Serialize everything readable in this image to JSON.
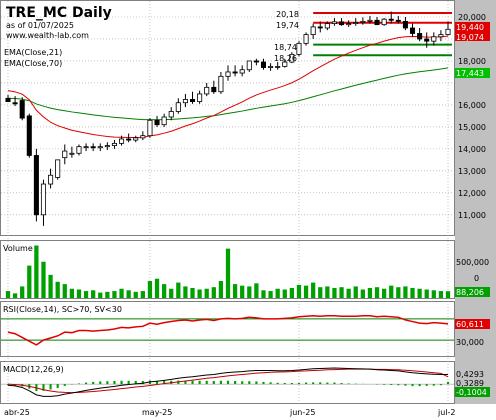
{
  "header": {
    "symbol_title": "TRE_MC Daily",
    "asof": "as of 01/07/2025",
    "site": "www.wealth-lab.com",
    "ema_labels": [
      "EMA(Close,21)",
      "EMA(Close,70)"
    ]
  },
  "colors": {
    "up_candle": "#ffffff",
    "down_candle": "#000000",
    "ema21": "#e00000",
    "ema70": "#008000",
    "volume": "#00a000",
    "rsi": "#e00000",
    "macd": "#000000",
    "macd_signal": "#c00000",
    "support_lines": "#008000",
    "resistance_lines": "#e00000",
    "axis_bg": "#c0c0c0",
    "last_price_tag": "#e00000",
    "ema70_tag": "#00c000"
  },
  "price_panel": {
    "y_ticks": [
      "20,000",
      "19,000",
      "18,000",
      "17,000",
      "16,000",
      "15,000",
      "14,000",
      "13,000",
      "12,000",
      "11,000"
    ],
    "tags": {
      "last": "19,440",
      "ema21": "19,074",
      "ema70": "17,443"
    },
    "level_labels": [
      "20,18",
      "19,74",
      "18,74",
      "18,26"
    ]
  },
  "volume_panel": {
    "label": "Volume",
    "y_ticks": [
      "500,000",
      "0"
    ],
    "tag": "88,206"
  },
  "rsi_panel": {
    "label": "RSI(Close,14), SC>70, SV<30",
    "y_ticks": [
      "30,000"
    ],
    "tag": "60,611"
  },
  "macd_panel": {
    "label": "MACD(12,26,9)",
    "tags": [
      "0,4293",
      "0,3289",
      "-0,1004"
    ]
  },
  "x_axis": {
    "labels": [
      "abr-25",
      "may-25",
      "jun-25",
      "jul-2"
    ]
  },
  "chart_data": {
    "type": "candlestick",
    "ylim": [
      10400,
      20500
    ],
    "dates": [
      "2025-04-01",
      "2025-04-02",
      "2025-04-03",
      "2025-04-04",
      "2025-04-07",
      "2025-04-08",
      "2025-04-09",
      "2025-04-10",
      "2025-04-11",
      "2025-04-14",
      "2025-04-15",
      "2025-04-16",
      "2025-04-17",
      "2025-04-22",
      "2025-04-23",
      "2025-04-24",
      "2025-04-25",
      "2025-04-28",
      "2025-04-29",
      "2025-04-30",
      "2025-05-02",
      "2025-05-05",
      "2025-05-06",
      "2025-05-07",
      "2025-05-08",
      "2025-05-09",
      "2025-05-12",
      "2025-05-13",
      "2025-05-14",
      "2025-05-15",
      "2025-05-16",
      "2025-05-19",
      "2025-05-20",
      "2025-05-21",
      "2025-05-22",
      "2025-05-23",
      "2025-05-26",
      "2025-05-27",
      "2025-05-28",
      "2025-05-29",
      "2025-05-30",
      "2025-06-02",
      "2025-06-03",
      "2025-06-04",
      "2025-06-05",
      "2025-06-06",
      "2025-06-09",
      "2025-06-10",
      "2025-06-11",
      "2025-06-12",
      "2025-06-13",
      "2025-06-16",
      "2025-06-17",
      "2025-06-18",
      "2025-06-19",
      "2025-06-20",
      "2025-06-23",
      "2025-06-24",
      "2025-06-25",
      "2025-06-26",
      "2025-06-27",
      "2025-06-30",
      "2025-07-01"
    ],
    "open": [
      16300,
      16100,
      16200,
      15500,
      13700,
      11000,
      12400,
      12700,
      13600,
      13800,
      13800,
      14100,
      14100,
      14050,
      14100,
      14150,
      14250,
      14450,
      14400,
      14500,
      14600,
      15300,
      15100,
      15450,
      15700,
      16100,
      16250,
      16150,
      16500,
      16800,
      16600,
      17300,
      17500,
      17450,
      17600,
      18000,
      17950,
      17700,
      17750,
      17750,
      17950,
      18300,
      18800,
      19200,
      19550,
      19500,
      19700,
      19780,
      19650,
      19700,
      19750,
      19800,
      19850,
      19650,
      19900,
      19850,
      19800,
      19500,
      19250,
      19000,
      18900,
      19100,
      19200
    ],
    "high": [
      16450,
      16400,
      16350,
      15600,
      14000,
      12600,
      13100,
      13500,
      14200,
      14100,
      14200,
      14250,
      14250,
      14250,
      14300,
      14400,
      14600,
      14700,
      14600,
      14800,
      15400,
      15500,
      15600,
      15900,
      16300,
      16500,
      16600,
      16650,
      17000,
      17100,
      17500,
      17800,
      17800,
      17800,
      18000,
      18100,
      18100,
      17900,
      17950,
      18100,
      18400,
      18900,
      19300,
      19700,
      19800,
      19800,
      19950,
      19950,
      19850,
      19950,
      19980,
      20050,
      20000,
      19950,
      20250,
      20050,
      20000,
      19700,
      19500,
      19300,
      19300,
      19400,
      19800
    ],
    "low": [
      16150,
      15950,
      15300,
      13600,
      10700,
      10500,
      12200,
      12600,
      13300,
      13600,
      13700,
      13900,
      13900,
      13900,
      13950,
      14000,
      14150,
      14300,
      14300,
      14400,
      14500,
      15000,
      15000,
      15300,
      15600,
      15900,
      16050,
      16050,
      16400,
      16500,
      16500,
      17100,
      17300,
      17300,
      17500,
      17800,
      17600,
      17550,
      17600,
      17700,
      17900,
      18200,
      18700,
      19000,
      19300,
      19400,
      19600,
      19600,
      19550,
      19600,
      19650,
      19700,
      19650,
      19600,
      19700,
      19700,
      19400,
      19100,
      18900,
      18600,
      18700,
      18900,
      19150
    ],
    "close": [
      16150,
      16050,
      15400,
      13700,
      11000,
      12400,
      12800,
      13500,
      13900,
      13800,
      14100,
      14100,
      14050,
      14100,
      14150,
      14250,
      14450,
      14400,
      14500,
      14600,
      15300,
      15100,
      15450,
      15700,
      16100,
      16250,
      16150,
      16500,
      16800,
      16600,
      17300,
      17500,
      17450,
      17600,
      18000,
      17950,
      17700,
      17750,
      17750,
      17950,
      18300,
      18800,
      19200,
      19550,
      19500,
      19700,
      19780,
      19650,
      19700,
      19750,
      19800,
      19850,
      19650,
      19900,
      19850,
      19800,
      19500,
      19250,
      19000,
      18900,
      19100,
      19200,
      19440
    ],
    "ema21_last": 19074,
    "ema70_last": 17443,
    "levels": {
      "resistance": [
        20180,
        19740
      ],
      "support": [
        18740,
        18260
      ]
    },
    "volume": [
      90000,
      60000,
      150000,
      420000,
      680000,
      470000,
      300000,
      210000,
      180000,
      120000,
      110000,
      90000,
      100000,
      70000,
      80000,
      90000,
      120000,
      100000,
      80000,
      90000,
      220000,
      250000,
      180000,
      120000,
      200000,
      150000,
      130000,
      110000,
      120000,
      140000,
      220000,
      640000,
      180000,
      160000,
      150000,
      190000,
      100000,
      90000,
      120000,
      110000,
      130000,
      170000,
      160000,
      200000,
      140000,
      150000,
      130000,
      140000,
      120000,
      150000,
      110000,
      130000,
      140000,
      120000,
      160000,
      140000,
      150000,
      130000,
      120000,
      110000,
      100000,
      90000,
      88206
    ],
    "volume_ylim": [
      0,
      700000
    ],
    "rsi": [
      45,
      42,
      35,
      28,
      21,
      30,
      34,
      38,
      45,
      44,
      48,
      48,
      47,
      48,
      49,
      51,
      54,
      53,
      55,
      56,
      62,
      60,
      63,
      65,
      67,
      68,
      66,
      68,
      69,
      67,
      70,
      71,
      70,
      71,
      73,
      72,
      70,
      70,
      70,
      71,
      72,
      74,
      75,
      76,
      75,
      76,
      76,
      75,
      75,
      75,
      76,
      76,
      74,
      75,
      74,
      73,
      68,
      65,
      62,
      61,
      63,
      62,
      60.611
    ],
    "rsi_ylim": [
      0,
      100
    ],
    "macd": [
      -0.05,
      -0.08,
      -0.15,
      -0.3,
      -0.48,
      -0.55,
      -0.55,
      -0.52,
      -0.45,
      -0.4,
      -0.34,
      -0.28,
      -0.23,
      -0.18,
      -0.14,
      -0.1,
      -0.05,
      -0.02,
      0.01,
      0.04,
      0.1,
      0.13,
      0.17,
      0.21,
      0.26,
      0.3,
      0.33,
      0.37,
      0.41,
      0.43,
      0.48,
      0.52,
      0.54,
      0.56,
      0.59,
      0.61,
      0.61,
      0.61,
      0.6,
      0.6,
      0.61,
      0.63,
      0.66,
      0.69,
      0.7,
      0.71,
      0.72,
      0.71,
      0.7,
      0.69,
      0.68,
      0.67,
      0.64,
      0.63,
      0.61,
      0.59,
      0.55,
      0.51,
      0.48,
      0.46,
      0.44,
      0.43,
      0.4293
    ],
    "macd_signal": [
      0.0,
      -0.02,
      -0.05,
      -0.1,
      -0.17,
      -0.25,
      -0.31,
      -0.35,
      -0.37,
      -0.38,
      -0.37,
      -0.35,
      -0.33,
      -0.3,
      -0.27,
      -0.24,
      -0.2,
      -0.17,
      -0.13,
      -0.1,
      -0.06,
      -0.02,
      0.02,
      0.06,
      0.1,
      0.14,
      0.18,
      0.22,
      0.26,
      0.29,
      0.33,
      0.37,
      0.4,
      0.43,
      0.46,
      0.49,
      0.51,
      0.53,
      0.54,
      0.55,
      0.56,
      0.58,
      0.59,
      0.61,
      0.62,
      0.64,
      0.65,
      0.66,
      0.67,
      0.67,
      0.67,
      0.67,
      0.66,
      0.66,
      0.65,
      0.64,
      0.62,
      0.6,
      0.57,
      0.54,
      0.51,
      0.48,
      0.3289
    ],
    "macd_hist_last": -0.1004,
    "macd_ylim": [
      -0.8,
      0.9
    ]
  }
}
